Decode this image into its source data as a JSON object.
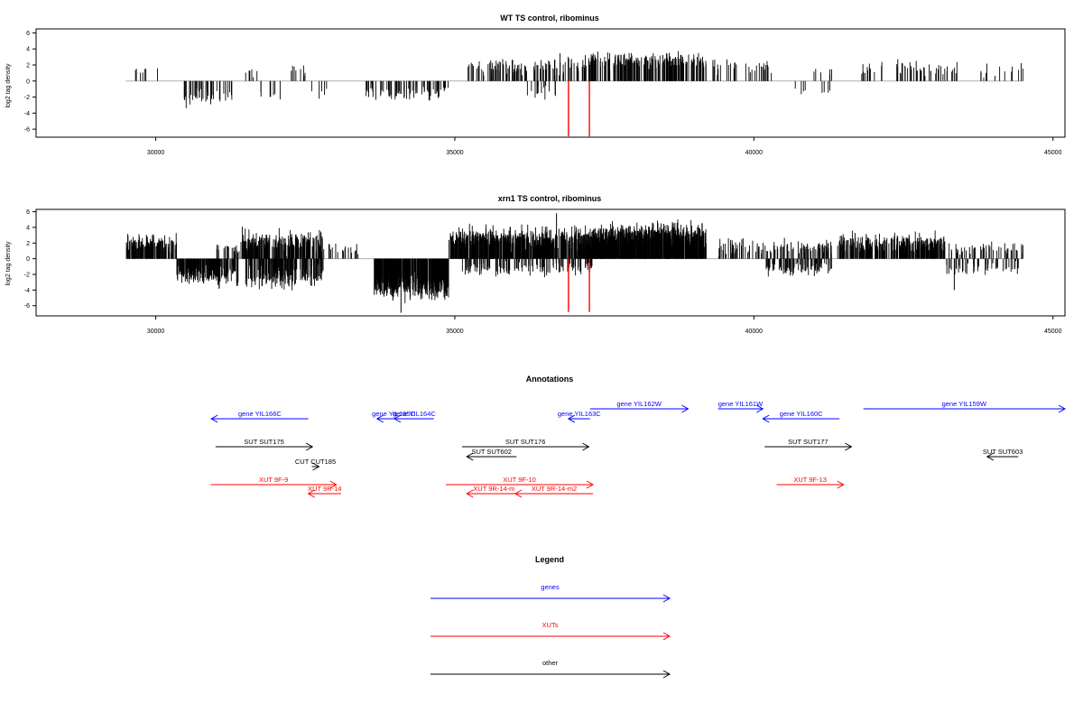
{
  "colors": {
    "gene": "#0000ff",
    "xut": "#ff0000",
    "other": "#000000",
    "marker": "#ff0000",
    "axis": "#000000",
    "baseline": "#b0b0b0",
    "bar": "#000000"
  },
  "annotations_title": "Annotations",
  "legend_title": "Legend",
  "chart_data": [
    {
      "type": "bar",
      "title": "WT TS control, ribominus",
      "xlabel": "",
      "ylabel": "log2 tag density",
      "xlim": [
        28000,
        45200
      ],
      "ylim": [
        -7,
        6.5
      ],
      "xticks": [
        30000,
        35000,
        40000,
        45000
      ],
      "yticks": [
        -6,
        -4,
        -2,
        0,
        2,
        4,
        6
      ],
      "ytick_labels": [
        "-6",
        "-4",
        "-2",
        "0",
        "2",
        "4",
        "6"
      ],
      "baseline_range": [
        29500,
        44500
      ],
      "markers": [
        36900,
        37250
      ],
      "marker_y": -6.9,
      "seed": 11,
      "segments": [
        {
          "start": 29600,
          "end": 30200,
          "mean": 1.5,
          "density": 0.012,
          "jitter": 0.4
        },
        {
          "start": 30450,
          "end": 31300,
          "mean": -2.0,
          "density": 0.05,
          "jitter": 0.7
        },
        {
          "start": 31300,
          "end": 31700,
          "mean": 1.2,
          "density": 0.015,
          "jitter": 0.4
        },
        {
          "start": 31750,
          "end": 32100,
          "mean": -2.0,
          "density": 0.02,
          "jitter": 0.4
        },
        {
          "start": 32100,
          "end": 32500,
          "mean": 1.3,
          "density": 0.02,
          "jitter": 0.6
        },
        {
          "start": 32500,
          "end": 32900,
          "mean": -1.5,
          "density": 0.012,
          "jitter": 0.4
        },
        {
          "start": 33500,
          "end": 34900,
          "mean": -1.6,
          "density": 0.05,
          "jitter": 0.6
        },
        {
          "start": 35200,
          "end": 36200,
          "mean": 1.8,
          "density": 0.06,
          "jitter": 0.7
        },
        {
          "start": 36200,
          "end": 36700,
          "mean": -1.4,
          "density": 0.03,
          "jitter": 0.6
        },
        {
          "start": 36300,
          "end": 37200,
          "mean": 2.0,
          "density": 0.06,
          "jitter": 0.8
        },
        {
          "start": 37200,
          "end": 39200,
          "mean": 2.6,
          "density": 0.1,
          "jitter": 0.7
        },
        {
          "start": 39300,
          "end": 40300,
          "mean": 1.8,
          "density": 0.03,
          "jitter": 0.6
        },
        {
          "start": 40600,
          "end": 41300,
          "mean": -1.3,
          "density": 0.012,
          "jitter": 0.3
        },
        {
          "start": 40800,
          "end": 41300,
          "mean": 1.2,
          "density": 0.012,
          "jitter": 0.3
        },
        {
          "start": 41800,
          "end": 42800,
          "mean": 1.6,
          "density": 0.03,
          "jitter": 0.6
        },
        {
          "start": 42700,
          "end": 44500,
          "mean": 1.4,
          "density": 0.02,
          "jitter": 0.6
        }
      ]
    },
    {
      "type": "bar",
      "title": "xrn1 TS control, ribominus",
      "xlabel": "",
      "ylabel": "log2 tag density",
      "xlim": [
        28000,
        45200
      ],
      "ylim": [
        -7.3,
        6.3
      ],
      "xticks": [
        30000,
        35000,
        40000,
        45000
      ],
      "yticks": [
        -6,
        -4,
        -2,
        0,
        2,
        4,
        6
      ],
      "ytick_labels": [
        "-6",
        "-4",
        "-2",
        "0",
        "2",
        "4",
        "6"
      ],
      "baseline_range": [
        29500,
        44500
      ],
      "markers": [
        36900,
        37250
      ],
      "marker_y": -6.8,
      "seed": 23,
      "segments": [
        {
          "start": 29500,
          "end": 30350,
          "mean": 2.0,
          "density": 0.15,
          "jitter": 0.8
        },
        {
          "start": 30350,
          "end": 31050,
          "mean": -2.0,
          "density": 0.2,
          "jitter": 0.8
        },
        {
          "start": 31000,
          "end": 31400,
          "mean": -2.4,
          "density": 0.1,
          "jitter": 1.0
        },
        {
          "start": 31000,
          "end": 31400,
          "mean": 1.3,
          "density": 0.05,
          "jitter": 0.5
        },
        {
          "start": 31400,
          "end": 32800,
          "mean": 2.2,
          "density": 0.15,
          "jitter": 1.0
        },
        {
          "start": 31500,
          "end": 32800,
          "mean": -2.2,
          "density": 0.15,
          "jitter": 1.0
        },
        {
          "start": 32800,
          "end": 33400,
          "mean": 1.4,
          "density": 0.03,
          "jitter": 0.5
        },
        {
          "start": 33650,
          "end": 34900,
          "mean": -3.4,
          "density": 0.3,
          "jitter": 1.2
        },
        {
          "start": 34900,
          "end": 37300,
          "mean": 2.5,
          "density": 0.25,
          "jitter": 1.0
        },
        {
          "start": 35100,
          "end": 37300,
          "mean": -1.2,
          "density": 0.06,
          "jitter": 0.6
        },
        {
          "start": 37300,
          "end": 39200,
          "mean": 3.0,
          "density": 0.3,
          "jitter": 1.0
        },
        {
          "start": 39400,
          "end": 40200,
          "mean": 1.6,
          "density": 0.06,
          "jitter": 0.8
        },
        {
          "start": 40200,
          "end": 41300,
          "mean": -1.3,
          "density": 0.08,
          "jitter": 0.7
        },
        {
          "start": 40200,
          "end": 41300,
          "mean": 1.5,
          "density": 0.06,
          "jitter": 0.6
        },
        {
          "start": 41400,
          "end": 43200,
          "mean": 1.9,
          "density": 0.15,
          "jitter": 0.9
        },
        {
          "start": 43200,
          "end": 44500,
          "mean": -1.4,
          "density": 0.04,
          "jitter": 0.6
        },
        {
          "start": 43200,
          "end": 44500,
          "mean": 1.4,
          "density": 0.04,
          "jitter": 0.6
        }
      ],
      "extremes": [
        {
          "x": 34100,
          "y": -6.9
        },
        {
          "x": 43350,
          "y": -4.0
        },
        {
          "x": 36700,
          "y": 5.8
        }
      ]
    }
  ],
  "annotations": [
    {
      "label": "gene YIL166C",
      "type": "gene",
      "start": 30930,
      "end": 32550,
      "strand": "-",
      "row": 0
    },
    {
      "label": "gene YIL165C",
      "type": "gene",
      "start": 33700,
      "end": 34250,
      "strand": "-",
      "row": 0
    },
    {
      "label": "gene YIL164C",
      "type": "gene",
      "start": 33990,
      "end": 34650,
      "strand": "-",
      "row": 0
    },
    {
      "label": "gene YIL163C",
      "type": "gene",
      "start": 36900,
      "end": 37260,
      "strand": "-",
      "row": 0
    },
    {
      "label": "gene YIL162W",
      "type": "gene",
      "start": 37260,
      "end": 38900,
      "strand": "+",
      "row": -1
    },
    {
      "label": "gene YIL161W",
      "type": "gene",
      "start": 39400,
      "end": 40150,
      "strand": "+",
      "row": -1
    },
    {
      "label": "gene YIL160C",
      "type": "gene",
      "start": 40150,
      "end": 41430,
      "strand": "-",
      "row": 0
    },
    {
      "label": "gene YIL159W",
      "type": "gene",
      "start": 41830,
      "end": 45200,
      "strand": "+",
      "row": -1
    },
    {
      "label": "SUT SUT175",
      "type": "other",
      "start": 31000,
      "end": 32620,
      "strand": "+",
      "row": 1
    },
    {
      "label": "CUT CUT185",
      "type": "other",
      "start": 32610,
      "end": 32730,
      "strand": "+",
      "row": 2
    },
    {
      "label": "SUT SUT176",
      "type": "other",
      "start": 35120,
      "end": 37240,
      "strand": "+",
      "row": 1
    },
    {
      "label": "SUT SUT602",
      "type": "other",
      "start": 35200,
      "end": 36030,
      "strand": "-",
      "row": 1.6
    },
    {
      "label": "SUT SUT177",
      "type": "other",
      "start": 40180,
      "end": 41630,
      "strand": "+",
      "row": 1
    },
    {
      "label": "SUT SUT603",
      "type": "other",
      "start": 43900,
      "end": 44420,
      "strand": "-",
      "row": 1.6
    },
    {
      "label": "XUT 9F-9",
      "type": "xut",
      "start": 30920,
      "end": 33020,
      "strand": "+",
      "row": 3
    },
    {
      "label": "XUT 9R-14",
      "type": "xut",
      "start": 32550,
      "end": 33100,
      "strand": "-",
      "row": 4
    },
    {
      "label": "XUT 9F-10",
      "type": "xut",
      "start": 34850,
      "end": 37310,
      "strand": "+",
      "row": 3
    },
    {
      "label": "XUT 9R-14-m",
      "type": "xut",
      "start": 35200,
      "end": 36110,
      "strand": "-",
      "row": 4
    },
    {
      "label": "XUT 9R-14-m2",
      "type": "xut",
      "start": 36010,
      "end": 37310,
      "strand": "-",
      "row": 4
    },
    {
      "label": "XUT 9F-13",
      "type": "xut",
      "start": 40380,
      "end": 41500,
      "strand": "+",
      "row": 3
    }
  ],
  "legend": [
    {
      "label": "genes",
      "type": "gene"
    },
    {
      "label": "XUTs",
      "type": "xut"
    },
    {
      "label": "other",
      "type": "other"
    }
  ]
}
